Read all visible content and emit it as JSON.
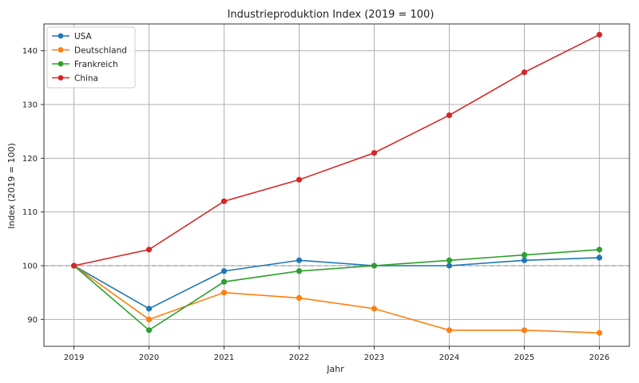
{
  "chart_data": {
    "type": "line",
    "title": "Industrieproduktion Index (2019 = 100)",
    "xlabel": "Jahr",
    "ylabel": "Index (2019 = 100)",
    "x": [
      2019,
      2020,
      2021,
      2022,
      2023,
      2024,
      2025,
      2026
    ],
    "xlim": [
      2018.6,
      2026.4
    ],
    "ylim": [
      85,
      145
    ],
    "yticks": [
      90,
      100,
      110,
      120,
      130,
      140
    ],
    "reference_line": 100,
    "grid": true,
    "legend_position": "top-left",
    "series": [
      {
        "name": "USA",
        "color": "#1f77b4",
        "values": [
          100,
          92,
          99,
          101,
          100,
          100,
          101,
          101.5
        ]
      },
      {
        "name": "Deutschland",
        "color": "#ff7f0e",
        "values": [
          100,
          90,
          95,
          94,
          92,
          88,
          88,
          87.5
        ]
      },
      {
        "name": "Frankreich",
        "color": "#2ca02c",
        "values": [
          100,
          88,
          97,
          99,
          100,
          101,
          102,
          103
        ]
      },
      {
        "name": "China",
        "color": "#d62728",
        "values": [
          100,
          103,
          112,
          116,
          121,
          128,
          136,
          143
        ]
      }
    ]
  }
}
